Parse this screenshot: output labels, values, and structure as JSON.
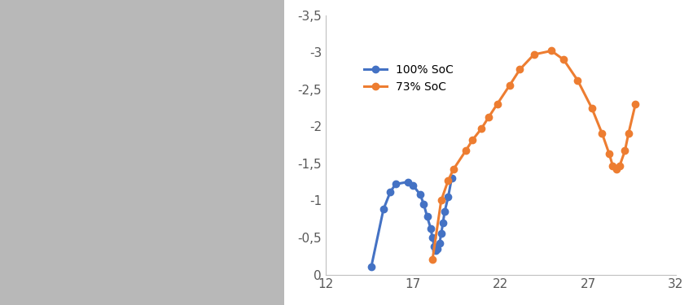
{
  "chart_data": {
    "type": "line",
    "xlim": [
      12,
      32
    ],
    "xticks": [
      12,
      17,
      22,
      27,
      32
    ],
    "ylim": [
      0,
      -3.5
    ],
    "yticks": [
      0,
      {
        "value": -0.5,
        "label": "-0,5"
      },
      -1,
      {
        "value": -1.5,
        "label": "-1,5"
      },
      -2,
      {
        "value": -2.5,
        "label": "-2,5"
      },
      -3,
      {
        "value": -3.5,
        "label": "-3,5"
      }
    ],
    "grid": false,
    "legend": "upper left",
    "marker": "o",
    "line_style": "solid",
    "series": [
      {
        "name": "100% SoC",
        "color": "#4472c4",
        "x": [
          14.6,
          15.3,
          15.7,
          16.0,
          16.7,
          17.0,
          17.4,
          17.6,
          17.8,
          18.0,
          18.1,
          18.2,
          18.3,
          18.4,
          18.5,
          18.6,
          18.7,
          18.8,
          19.0,
          19.2
        ],
        "values": [
          -0.1,
          -0.88,
          -1.12,
          -1.22,
          -1.25,
          -1.2,
          -1.08,
          -0.95,
          -0.78,
          -0.62,
          -0.5,
          -0.38,
          -0.32,
          -0.35,
          -0.42,
          -0.55,
          -0.7,
          -0.85,
          -1.05,
          -1.3
        ]
      },
      {
        "name": "73% SoC",
        "color": "#ed7d31",
        "x": [
          18.1,
          18.6,
          19.0,
          19.3,
          20.0,
          20.4,
          20.9,
          21.3,
          21.8,
          22.5,
          23.1,
          23.9,
          24.9,
          25.6,
          26.4,
          27.2,
          27.8,
          28.2,
          28.4,
          28.6,
          28.8,
          29.1,
          29.3,
          29.7
        ],
        "values": [
          -0.2,
          -1.0,
          -1.27,
          -1.42,
          -1.67,
          -1.82,
          -1.97,
          -2.12,
          -2.3,
          -2.55,
          -2.77,
          -2.97,
          -3.02,
          -2.9,
          -2.62,
          -2.25,
          -1.9,
          -1.63,
          -1.47,
          -1.42,
          -1.47,
          -1.67,
          -1.9,
          -2.3
        ]
      }
    ]
  }
}
